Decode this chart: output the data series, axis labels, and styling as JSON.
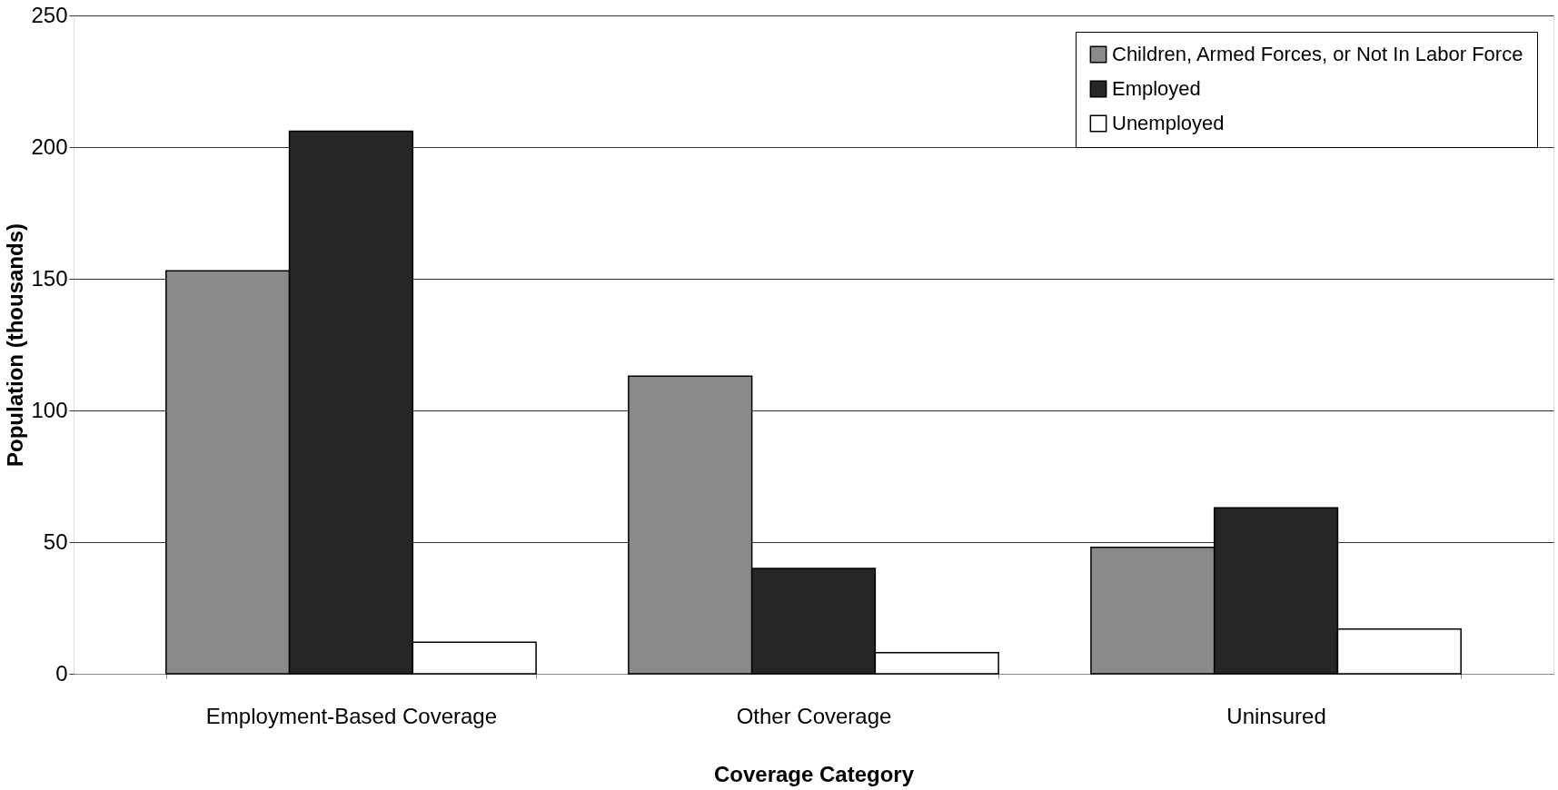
{
  "chart_data": {
    "type": "bar",
    "xlabel": "Coverage Category",
    "ylabel": "Population (thousands)",
    "categories": [
      "Employment-Based Coverage",
      "Other Coverage",
      "Uninsured"
    ],
    "series": [
      {
        "name": "Children, Armed Forces, or Not In Labor Force",
        "color": "#8a8a8a",
        "values": [
          153,
          113,
          48
        ]
      },
      {
        "name": "Employed",
        "color": "#262626",
        "values": [
          206,
          40,
          63
        ]
      },
      {
        "name": "Unemployed",
        "color": "#ffffff",
        "values": [
          12,
          8,
          17
        ]
      }
    ],
    "ylim": [
      0,
      250
    ],
    "yticks": [
      0,
      50,
      100,
      150,
      200,
      250
    ],
    "grid": "y",
    "legend": "top right"
  }
}
